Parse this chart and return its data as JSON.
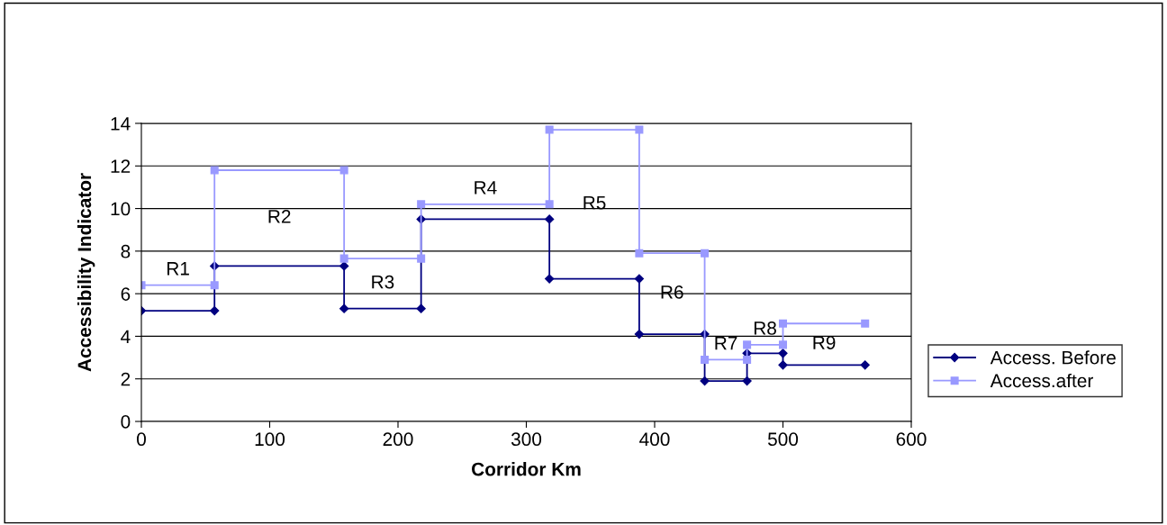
{
  "chart_data": {
    "type": "line",
    "xlabel": "Corridor Km",
    "ylabel": "Accessibility Indicator",
    "xlim": [
      0,
      600
    ],
    "xticks": [
      0,
      100,
      200,
      300,
      400,
      500,
      600
    ],
    "ylim": [
      0,
      14
    ],
    "yticks": [
      0,
      2,
      4,
      6,
      8,
      10,
      12,
      14
    ],
    "grid": "y",
    "legend": "right",
    "series": [
      {
        "name": "Access. Before",
        "color": "#000080",
        "marker": "diamond",
        "x": [
          0,
          57,
          57,
          158,
          158,
          218,
          218,
          318,
          318,
          388,
          388,
          439,
          439,
          472,
          472,
          500,
          500,
          564
        ],
        "values": [
          5.2,
          5.2,
          7.3,
          7.3,
          5.3,
          5.3,
          9.5,
          9.5,
          6.7,
          6.7,
          4.1,
          4.1,
          1.9,
          1.9,
          3.2,
          3.2,
          2.65,
          2.65
        ]
      },
      {
        "name": "Access.after",
        "color": "#9999ff",
        "marker": "square",
        "x": [
          0,
          57,
          57,
          158,
          158,
          218,
          218,
          318,
          318,
          388,
          388,
          439,
          439,
          472,
          472,
          500,
          500,
          564
        ],
        "values": [
          6.4,
          6.4,
          11.8,
          11.8,
          7.65,
          7.65,
          10.2,
          10.2,
          13.7,
          13.7,
          7.9,
          7.9,
          2.9,
          2.9,
          3.6,
          3.6,
          4.6,
          4.6
        ]
      }
    ],
    "annotations": [
      "R1",
      "R2",
      "R3",
      "R4",
      "R5",
      "R6",
      "R7",
      "R8",
      "R9"
    ]
  }
}
